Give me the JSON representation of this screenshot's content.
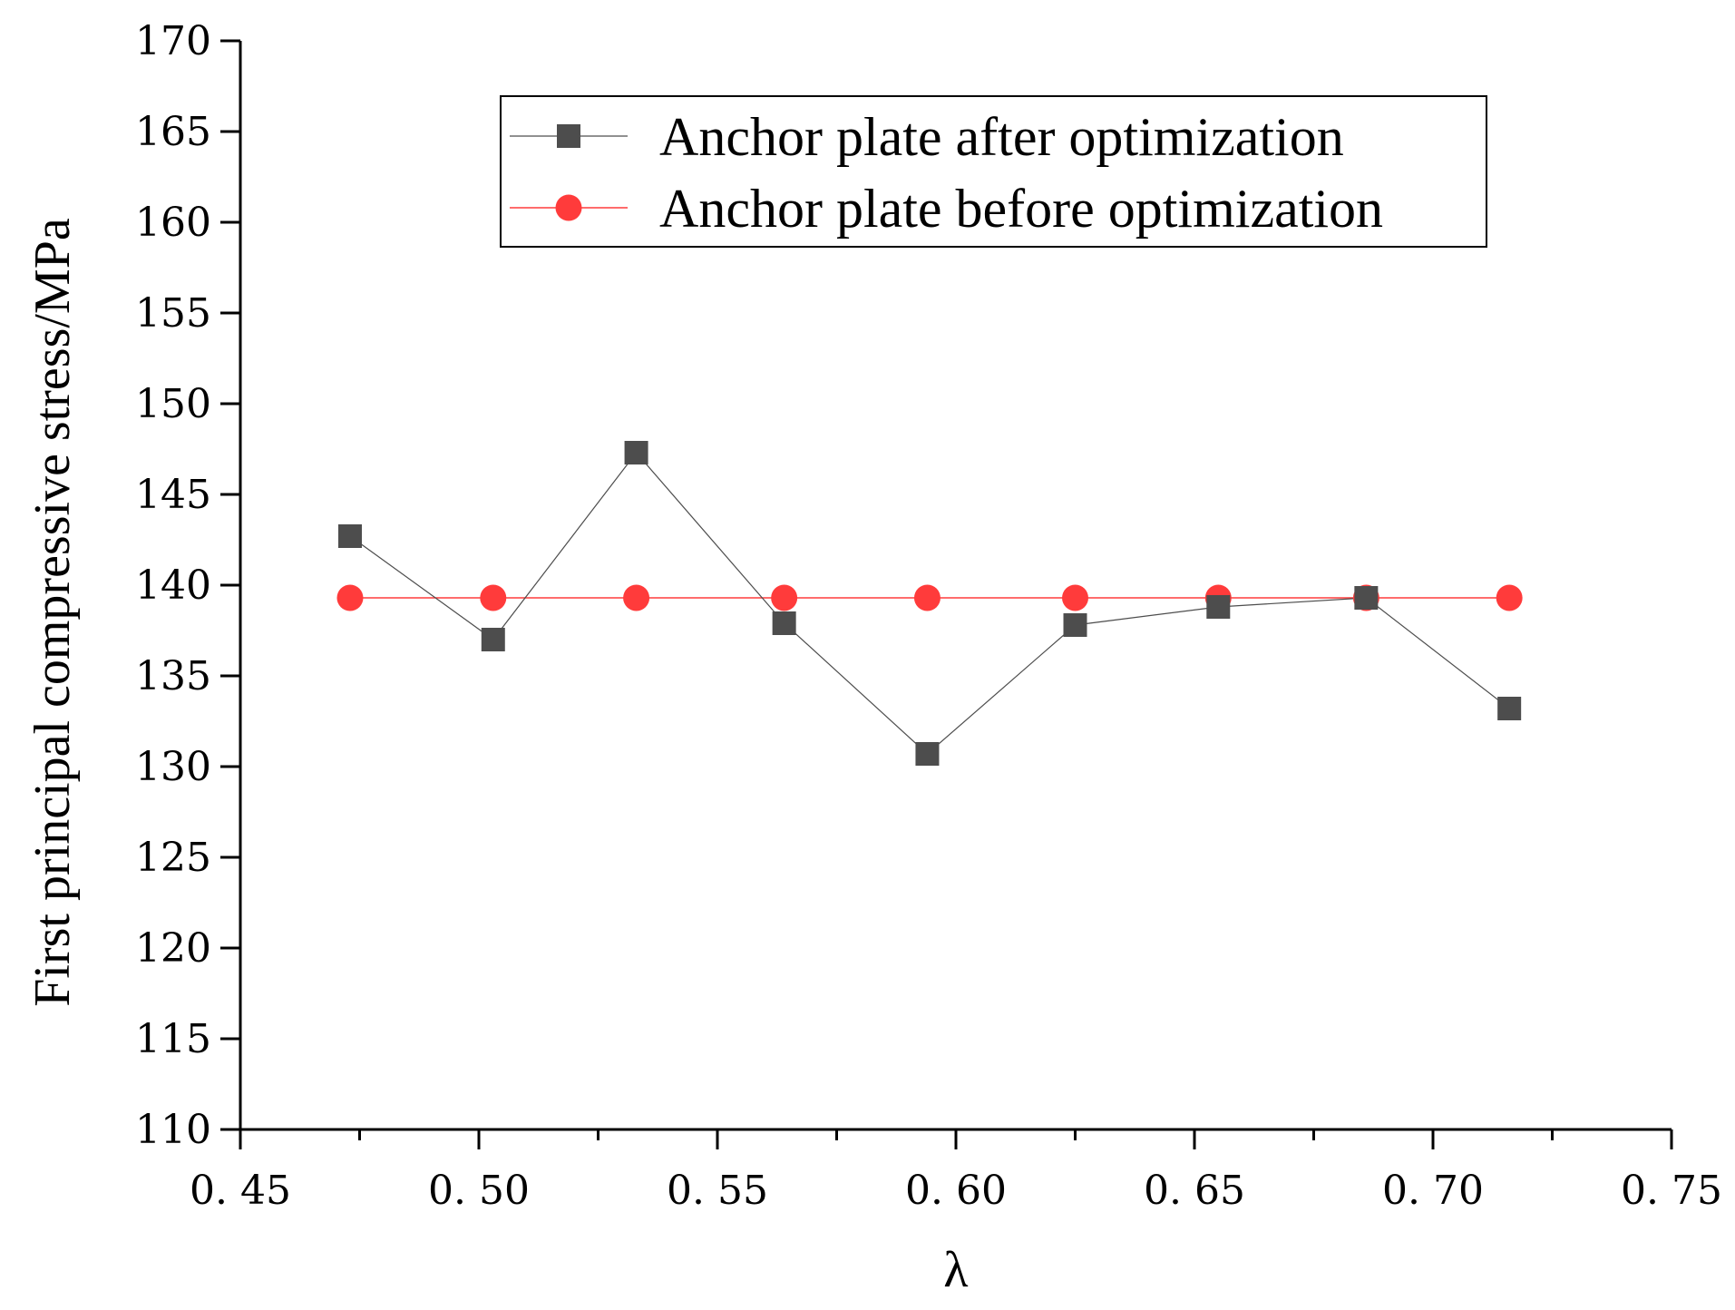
{
  "colors": {
    "after": "#4d4d4d",
    "before": "#ff3b3b",
    "axis": "#000000"
  },
  "chart_data": {
    "type": "line",
    "xlabel": "λ",
    "ylabel": "First principal compressive stress/MPa",
    "xlim": [
      0.45,
      0.75
    ],
    "ylim": [
      110,
      170
    ],
    "xticks": [
      0.45,
      0.5,
      0.55,
      0.6,
      0.65,
      0.7,
      0.75
    ],
    "xtick_labels": [
      "0. 45",
      "0. 50",
      "0. 55",
      "0. 60",
      "0. 65",
      "0. 70",
      "0. 75"
    ],
    "yticks": [
      110,
      115,
      120,
      125,
      130,
      135,
      140,
      145,
      150,
      155,
      160,
      165,
      170
    ],
    "ytick_labels": [
      "110",
      "115",
      "120",
      "125",
      "130",
      "135",
      "140",
      "145",
      "150",
      "155",
      "160",
      "165",
      "170"
    ],
    "legend_position": "top-right",
    "series": [
      {
        "name": "Anchor plate after optimization",
        "marker": "square",
        "color": "#4d4d4d",
        "x": [
          0.473,
          0.503,
          0.533,
          0.564,
          0.594,
          0.625,
          0.655,
          0.686,
          0.716
        ],
        "y": [
          142.7,
          137.0,
          147.3,
          137.9,
          130.7,
          137.8,
          138.8,
          139.3,
          133.2
        ]
      },
      {
        "name": "Anchor plate before optimization",
        "marker": "circle",
        "color": "#ff3b3b",
        "x": [
          0.473,
          0.503,
          0.533,
          0.564,
          0.594,
          0.625,
          0.655,
          0.686,
          0.716
        ],
        "y": [
          139.3,
          139.3,
          139.3,
          139.3,
          139.3,
          139.3,
          139.3,
          139.3,
          139.3
        ]
      }
    ]
  }
}
